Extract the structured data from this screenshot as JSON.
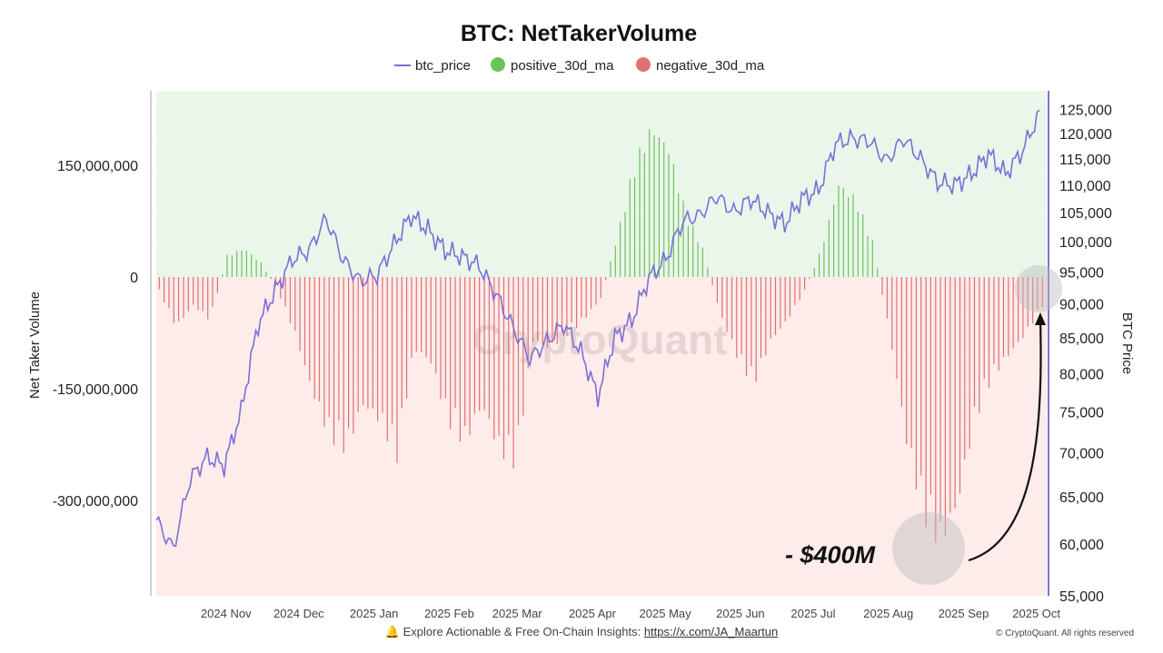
{
  "header": {
    "title": "BTC: NetTakerVolume"
  },
  "footer": {
    "bell_icon": "bell-icon",
    "text": "Explore Actionable & Free On-Chain Insights:",
    "link": "https://x.com/JA_Maartun",
    "copyright": "© CryptoQuant. All rights reserved"
  },
  "colors": {
    "btc_price": "#7b6fd6",
    "positive": "#6cc35a",
    "negative": "#e07070",
    "positive_bg": "#eaf6ea",
    "negative_bg": "#fdecea"
  },
  "chart_data": {
    "type": "bar",
    "title": "BTC: NetTakerVolume",
    "watermark": "CryptoQuant",
    "legend": {
      "position": "top-center",
      "entries": [
        "btc_price",
        "positive_30d_ma",
        "negative_30d_ma"
      ]
    },
    "y_left": {
      "label": "Net Taker Volume",
      "range": [
        -430000000,
        250000000
      ],
      "ticks": [
        150000000,
        0,
        -150000000,
        -300000000
      ],
      "tick_labels": [
        "150,000,000",
        "0",
        "-150,000,000",
        "-300,000,000"
      ]
    },
    "y_right": {
      "label": "BTC Price",
      "scale": "log",
      "range": [
        55000,
        127000
      ],
      "ticks": [
        125000,
        120000,
        115000,
        110000,
        105000,
        100000,
        95000,
        90000,
        85000,
        80000,
        75000,
        70000,
        65000,
        60000,
        55000
      ],
      "tick_labels": [
        "125,000",
        "120,000",
        "115,000",
        "110,000",
        "105,000",
        "100,000",
        "95,000",
        "90,000",
        "85,000",
        "80,000",
        "75,000",
        "70,000",
        "65,000",
        "60,000",
        "55,000"
      ]
    },
    "x_axis": {
      "range": [
        "2024-10-07",
        "2025-10-09"
      ],
      "ticks": [
        "2024-11-01",
        "2024-12-01",
        "2025-01-01",
        "2025-02-01",
        "2025-03-01",
        "2025-04-01",
        "2025-05-01",
        "2025-06-01",
        "2025-07-01",
        "2025-08-01",
        "2025-09-01",
        "2025-10-01"
      ],
      "tick_labels": [
        "2024 Nov",
        "2024 Dec",
        "2025 Jan",
        "2025 Feb",
        "2025 Mar",
        "2025 Apr",
        "2025 May",
        "2025 Jun",
        "2025 Jul",
        "2025 Aug",
        "2025 Sep",
        "2025 Oct"
      ]
    },
    "net_taker_volume_30d_ma": {
      "note": "weekly readings, positive values shown green, negative red",
      "x": [
        "2024-10-08",
        "2024-10-15",
        "2024-10-22",
        "2024-10-29",
        "2024-11-05",
        "2024-11-12",
        "2024-11-19",
        "2024-11-26",
        "2024-12-03",
        "2024-12-10",
        "2024-12-17",
        "2024-12-24",
        "2024-12-31",
        "2025-01-07",
        "2025-01-14",
        "2025-01-21",
        "2025-01-28",
        "2025-02-04",
        "2025-02-11",
        "2025-02-18",
        "2025-02-25",
        "2025-03-04",
        "2025-03-11",
        "2025-03-18",
        "2025-03-25",
        "2025-04-01",
        "2025-04-08",
        "2025-04-15",
        "2025-04-22",
        "2025-04-29",
        "2025-05-06",
        "2025-05-13",
        "2025-05-20",
        "2025-05-27",
        "2025-06-03",
        "2025-06-10",
        "2025-06-17",
        "2025-06-24",
        "2025-07-01",
        "2025-07-08",
        "2025-07-15",
        "2025-07-22",
        "2025-07-29",
        "2025-08-05",
        "2025-08-12",
        "2025-08-19",
        "2025-08-26",
        "2025-09-02",
        "2025-09-09",
        "2025-09-16",
        "2025-09-23",
        "2025-09-30",
        "2025-10-07"
      ],
      "values": [
        -20000000,
        -70000000,
        -40000000,
        -60000000,
        30000000,
        40000000,
        20000000,
        -20000000,
        -80000000,
        -160000000,
        -220000000,
        -240000000,
        -180000000,
        -200000000,
        -250000000,
        -100000000,
        -120000000,
        -200000000,
        -230000000,
        -180000000,
        -240000000,
        -260000000,
        -90000000,
        -100000000,
        -80000000,
        -60000000,
        -30000000,
        60000000,
        160000000,
        210000000,
        180000000,
        90000000,
        40000000,
        -50000000,
        -110000000,
        -150000000,
        -90000000,
        -60000000,
        -20000000,
        40000000,
        130000000,
        110000000,
        50000000,
        -80000000,
        -230000000,
        -330000000,
        -370000000,
        -320000000,
        -200000000,
        -140000000,
        -110000000,
        -80000000,
        -40000000
      ]
    },
    "btc_price": {
      "x": [
        "2024-10-07",
        "2024-10-14",
        "2024-10-21",
        "2024-10-28",
        "2024-11-04",
        "2024-11-11",
        "2024-11-18",
        "2024-11-25",
        "2024-12-02",
        "2024-12-09",
        "2024-12-16",
        "2024-12-23",
        "2024-12-30",
        "2025-01-06",
        "2025-01-13",
        "2025-01-20",
        "2025-01-27",
        "2025-02-03",
        "2025-02-10",
        "2025-02-17",
        "2025-02-24",
        "2025-03-03",
        "2025-03-10",
        "2025-03-17",
        "2025-03-24",
        "2025-03-31",
        "2025-04-07",
        "2025-04-14",
        "2025-04-21",
        "2025-04-28",
        "2025-05-05",
        "2025-05-12",
        "2025-05-19",
        "2025-05-26",
        "2025-06-02",
        "2025-06-09",
        "2025-06-16",
        "2025-06-23",
        "2025-06-30",
        "2025-07-07",
        "2025-07-14",
        "2025-07-21",
        "2025-07-28",
        "2025-08-04",
        "2025-08-11",
        "2025-08-18",
        "2025-08-25",
        "2025-09-01",
        "2025-09-08",
        "2025-09-15",
        "2025-09-22",
        "2025-09-29",
        "2025-10-06"
      ],
      "values": [
        62500,
        59500,
        67000,
        69500,
        68500,
        75000,
        87000,
        92000,
        97000,
        98500,
        104000,
        97000,
        93500,
        94500,
        99500,
        104500,
        102000,
        98500,
        97500,
        96000,
        91500,
        86500,
        82000,
        84500,
        87000,
        83000,
        77000,
        85000,
        87500,
        94000,
        97000,
        103500,
        104500,
        108000,
        105000,
        107500,
        105000,
        103000,
        107500,
        109000,
        118000,
        119000,
        118500,
        114500,
        119000,
        115000,
        110500,
        110000,
        112000,
        116000,
        112000,
        116500,
        124000
      ]
    }
  },
  "annotation": {
    "text": "- $400M"
  }
}
